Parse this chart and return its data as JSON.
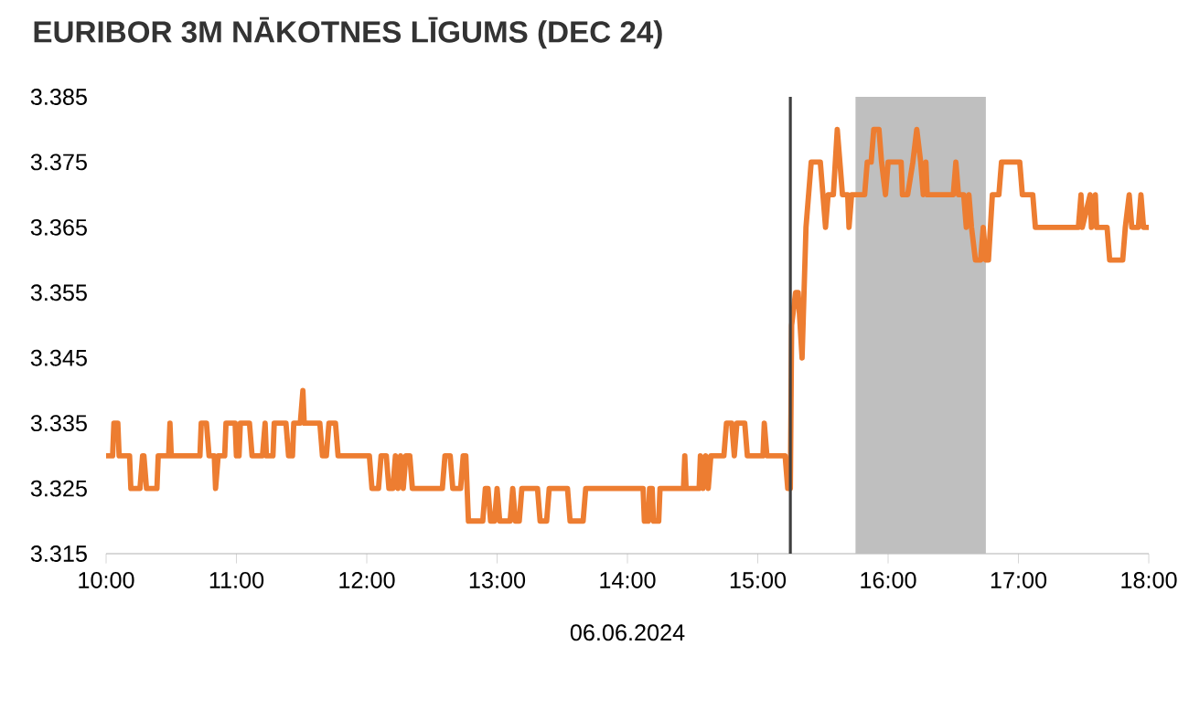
{
  "chart_data": {
    "type": "line",
    "title": "EURIBOR 3M NĀKOTNES LĪGUMS (DEC 24)",
    "xlabel": "06.06.2024",
    "x": [
      10.0,
      10.05,
      10.06,
      10.09,
      10.1,
      10.18,
      10.19,
      10.26,
      10.28,
      10.29,
      10.31,
      10.39,
      10.4,
      10.48,
      10.49,
      10.5,
      10.72,
      10.73,
      10.77,
      10.79,
      10.83,
      10.84,
      10.86,
      10.91,
      10.92,
      10.99,
      11.0,
      11.02,
      11.03,
      11.1,
      11.12,
      11.2,
      11.22,
      11.23,
      11.28,
      11.29,
      11.38,
      11.4,
      11.43,
      11.44,
      11.49,
      11.51,
      11.52,
      11.64,
      11.66,
      11.69,
      11.71,
      11.76,
      11.78,
      12.02,
      12.04,
      12.09,
      12.11,
      12.15,
      12.17,
      12.2,
      12.22,
      12.24,
      12.26,
      12.28,
      12.3,
      12.33,
      12.35,
      12.58,
      12.6,
      12.64,
      12.66,
      12.72,
      12.74,
      12.76,
      12.78,
      12.89,
      12.91,
      12.93,
      12.95,
      12.98,
      13.0,
      13.02,
      13.1,
      13.12,
      13.14,
      13.17,
      13.19,
      13.31,
      13.33,
      13.38,
      13.4,
      13.54,
      13.56,
      13.66,
      13.68,
      14.12,
      14.13,
      14.16,
      14.17,
      14.19,
      14.2,
      14.24,
      14.25,
      14.43,
      14.44,
      14.45,
      14.55,
      14.56,
      14.58,
      14.6,
      14.62,
      14.64,
      14.74,
      14.76,
      14.8,
      14.82,
      14.84,
      14.9,
      14.92,
      15.04,
      15.05,
      15.07,
      15.21,
      15.23,
      15.25,
      15.26,
      15.29,
      15.31,
      15.34,
      15.37,
      15.41,
      15.48,
      15.52,
      15.54,
      15.58,
      15.61,
      15.63,
      15.65,
      15.69,
      15.7,
      15.72,
      15.82,
      15.84,
      15.87,
      15.89,
      15.93,
      15.95,
      15.98,
      16.0,
      16.1,
      16.11,
      16.15,
      16.19,
      16.22,
      16.25,
      16.27,
      16.29,
      16.3,
      16.5,
      16.52,
      16.54,
      16.58,
      16.6,
      16.62,
      16.64,
      16.67,
      16.71,
      16.73,
      16.75,
      16.77,
      16.8,
      16.85,
      16.87,
      17.01,
      17.03,
      17.11,
      17.13,
      17.46,
      17.48,
      17.49,
      17.55,
      17.56,
      17.59,
      17.6,
      17.68,
      17.7,
      17.8,
      17.82,
      17.85,
      17.87,
      17.92,
      17.94,
      17.96,
      18.0
    ],
    "series": [
      {
        "color": "#ed7d31",
        "values": [
          3.33,
          3.33,
          3.335,
          3.335,
          3.33,
          3.33,
          3.325,
          3.325,
          3.33,
          3.33,
          3.325,
          3.325,
          3.33,
          3.33,
          3.335,
          3.33,
          3.33,
          3.335,
          3.335,
          3.33,
          3.33,
          3.325,
          3.33,
          3.33,
          3.335,
          3.335,
          3.33,
          3.33,
          3.335,
          3.335,
          3.33,
          3.33,
          3.335,
          3.33,
          3.33,
          3.335,
          3.335,
          3.33,
          3.33,
          3.335,
          3.335,
          3.34,
          3.335,
          3.335,
          3.33,
          3.33,
          3.335,
          3.335,
          3.33,
          3.33,
          3.325,
          3.325,
          3.33,
          3.33,
          3.325,
          3.325,
          3.33,
          3.325,
          3.33,
          3.325,
          3.33,
          3.33,
          3.325,
          3.325,
          3.33,
          3.33,
          3.325,
          3.325,
          3.33,
          3.33,
          3.32,
          3.32,
          3.325,
          3.325,
          3.32,
          3.32,
          3.325,
          3.32,
          3.32,
          3.325,
          3.32,
          3.32,
          3.325,
          3.325,
          3.32,
          3.32,
          3.325,
          3.325,
          3.32,
          3.32,
          3.325,
          3.325,
          3.32,
          3.32,
          3.325,
          3.325,
          3.32,
          3.32,
          3.325,
          3.325,
          3.33,
          3.325,
          3.325,
          3.33,
          3.325,
          3.33,
          3.325,
          3.33,
          3.33,
          3.335,
          3.335,
          3.33,
          3.335,
          3.335,
          3.33,
          3.33,
          3.335,
          3.33,
          3.33,
          3.325,
          3.325,
          3.35,
          3.355,
          3.355,
          3.345,
          3.365,
          3.375,
          3.375,
          3.365,
          3.37,
          3.37,
          3.38,
          3.375,
          3.37,
          3.37,
          3.365,
          3.37,
          3.37,
          3.375,
          3.375,
          3.38,
          3.38,
          3.375,
          3.37,
          3.375,
          3.375,
          3.37,
          3.37,
          3.375,
          3.38,
          3.375,
          3.37,
          3.375,
          3.37,
          3.37,
          3.375,
          3.37,
          3.37,
          3.365,
          3.37,
          3.365,
          3.36,
          3.36,
          3.365,
          3.36,
          3.36,
          3.37,
          3.37,
          3.375,
          3.375,
          3.37,
          3.37,
          3.365,
          3.365,
          3.37,
          3.365,
          3.37,
          3.365,
          3.37,
          3.365,
          3.365,
          3.36,
          3.36,
          3.365,
          3.37,
          3.365,
          3.365,
          3.37,
          3.365,
          3.365
        ]
      }
    ],
    "xlim": [
      10,
      18
    ],
    "xticks": [
      {
        "value": 10,
        "label": "10:00"
      },
      {
        "value": 11,
        "label": "11:00"
      },
      {
        "value": 12,
        "label": "12:00"
      },
      {
        "value": 13,
        "label": "13:00"
      },
      {
        "value": 14,
        "label": "14:00"
      },
      {
        "value": 15,
        "label": "15:00"
      },
      {
        "value": 16,
        "label": "16:00"
      },
      {
        "value": 17,
        "label": "17:00"
      },
      {
        "value": 18,
        "label": "18:00"
      }
    ],
    "ylim": [
      3.315,
      3.385
    ],
    "yticks": [
      3.315,
      3.325,
      3.335,
      3.345,
      3.355,
      3.365,
      3.375,
      3.385
    ],
    "ref_lines": [
      {
        "axis": "x",
        "value": 15.25,
        "color": "#404040"
      }
    ],
    "bands": [
      {
        "axis": "x",
        "from": 15.75,
        "to": 16.75,
        "color": "#bfbfbf"
      }
    ],
    "grid": false,
    "marker": "none",
    "line_style": "solid"
  }
}
